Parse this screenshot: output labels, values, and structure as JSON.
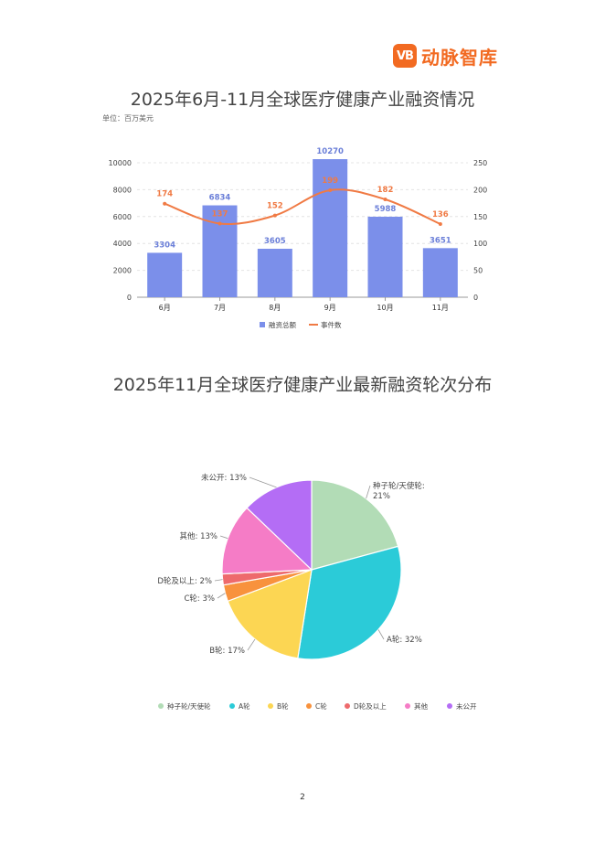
{
  "brand": {
    "mark": "VB",
    "name": "动脉智库",
    "color": "#f26a21"
  },
  "page_number": "2",
  "chart_data": [
    {
      "type": "bar",
      "title": "2025年6月-11月全球医疗健康产业融资情况",
      "unit": "单位：百万美元",
      "categories": [
        "6月",
        "7月",
        "8月",
        "9月",
        "10月",
        "11月"
      ],
      "series": [
        {
          "name": "融资总额",
          "type": "bar",
          "axis": "left",
          "color": "#7b8fea",
          "values": [
            3304,
            6834,
            3605,
            10270,
            5988,
            3651
          ]
        },
        {
          "name": "事件数",
          "type": "line",
          "axis": "right",
          "color": "#f07a44",
          "values": [
            174,
            137,
            152,
            199,
            182,
            136
          ]
        }
      ],
      "ylim_left": [
        0,
        10000
      ],
      "yticks_left": [
        0,
        2000,
        4000,
        6000,
        8000,
        10000
      ],
      "ylim_right": [
        0,
        250
      ],
      "yticks_right": [
        0,
        50,
        100,
        150,
        200,
        250
      ],
      "grid": true,
      "legend": "bottom"
    },
    {
      "type": "pie",
      "title": "2025年11月全球医疗健康产业最新融资轮次分布",
      "slices": [
        {
          "name": "种子轮/天使轮",
          "label": "种子轮/天使轮: 21%",
          "value": 21,
          "color": "#b2dcb6"
        },
        {
          "name": "A轮",
          "label": "A轮: 32%",
          "value": 32,
          "color": "#2bcbd8"
        },
        {
          "name": "B轮",
          "label": "B轮: 17%",
          "value": 17,
          "color": "#fcd653"
        },
        {
          "name": "C轮",
          "label": "C轮: 3%",
          "value": 3,
          "color": "#f8923d"
        },
        {
          "name": "D轮及以上",
          "label": "D轮及以上: 2%",
          "value": 2,
          "color": "#ee6a6c"
        },
        {
          "name": "其他",
          "label": "其他: 13%",
          "value": 13,
          "color": "#f57cc6"
        },
        {
          "name": "未公开",
          "label": "未公开: 13%",
          "value": 13,
          "color": "#b46df5"
        }
      ],
      "legend": "bottom"
    }
  ]
}
